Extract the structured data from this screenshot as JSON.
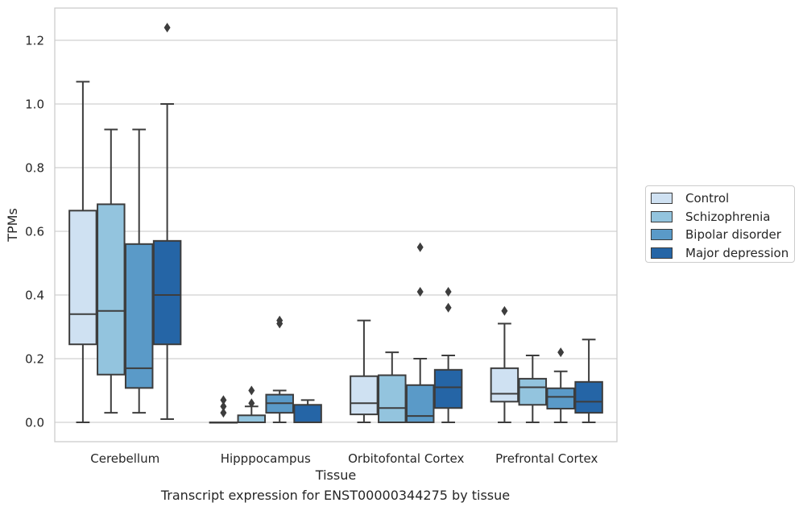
{
  "chart_data": {
    "type": "box",
    "title": "",
    "xlabel": "Tissue",
    "ylabel": "TPMs",
    "ylim": [
      -0.06,
      1.3
    ],
    "yticks": [
      "0.0",
      "0.2",
      "0.4",
      "0.6",
      "0.8",
      "1.0",
      "1.2"
    ],
    "grid": true,
    "legend_position": "right",
    "categories": [
      "Cerebellum",
      "Hipppocampus",
      "Orbitofontal Cortex",
      "Prefrontal Cortex"
    ],
    "series": [
      {
        "name": "Control",
        "color": "#cfe1f2",
        "boxes": [
          {
            "whisker_low": 0.0,
            "q1": 0.245,
            "median": 0.34,
            "q3": 0.665,
            "whisker_high": 1.07,
            "outliers": []
          },
          {
            "whisker_low": 0.0,
            "q1": 0.0,
            "median": 0.0,
            "q3": 0.0,
            "whisker_high": 0.0,
            "outliers": [
              0.03,
              0.05,
              0.07
            ]
          },
          {
            "whisker_low": 0.0,
            "q1": 0.025,
            "median": 0.06,
            "q3": 0.145,
            "whisker_high": 0.32,
            "outliers": []
          },
          {
            "whisker_low": 0.0,
            "q1": 0.065,
            "median": 0.09,
            "q3": 0.17,
            "whisker_high": 0.31,
            "outliers": [
              0.35
            ]
          }
        ]
      },
      {
        "name": "Schizophrenia",
        "color": "#93c4de",
        "boxes": [
          {
            "whisker_low": 0.03,
            "q1": 0.15,
            "median": 0.35,
            "q3": 0.685,
            "whisker_high": 0.92,
            "outliers": []
          },
          {
            "whisker_low": 0.0,
            "q1": 0.0,
            "median": 0.0,
            "q3": 0.022,
            "whisker_high": 0.05,
            "outliers": [
              0.06,
              0.1
            ]
          },
          {
            "whisker_low": 0.0,
            "q1": 0.0,
            "median": 0.045,
            "q3": 0.148,
            "whisker_high": 0.22,
            "outliers": []
          },
          {
            "whisker_low": 0.0,
            "q1": 0.055,
            "median": 0.11,
            "q3": 0.137,
            "whisker_high": 0.21,
            "outliers": []
          }
        ]
      },
      {
        "name": "Bipolar disorder",
        "color": "#5a9ac8",
        "boxes": [
          {
            "whisker_low": 0.03,
            "q1": 0.108,
            "median": 0.17,
            "q3": 0.56,
            "whisker_high": 0.92,
            "outliers": []
          },
          {
            "whisker_low": 0.0,
            "q1": 0.03,
            "median": 0.06,
            "q3": 0.087,
            "whisker_high": 0.1,
            "outliers": [
              0.31,
              0.32
            ]
          },
          {
            "whisker_low": 0.0,
            "q1": 0.0,
            "median": 0.02,
            "q3": 0.117,
            "whisker_high": 0.2,
            "outliers": [
              0.41,
              0.55
            ]
          },
          {
            "whisker_low": 0.0,
            "q1": 0.043,
            "median": 0.08,
            "q3": 0.107,
            "whisker_high": 0.16,
            "outliers": [
              0.22
            ]
          }
        ]
      },
      {
        "name": "Major depression",
        "color": "#2565a6",
        "boxes": [
          {
            "whisker_low": 0.01,
            "q1": 0.245,
            "median": 0.4,
            "q3": 0.57,
            "whisker_high": 1.0,
            "outliers": [
              1.24
            ]
          },
          {
            "whisker_low": 0.0,
            "q1": 0.0,
            "median": 0.0,
            "q3": 0.055,
            "whisker_high": 0.07,
            "outliers": []
          },
          {
            "whisker_low": 0.0,
            "q1": 0.045,
            "median": 0.11,
            "q3": 0.165,
            "whisker_high": 0.21,
            "outliers": [
              0.36,
              0.41
            ]
          },
          {
            "whisker_low": 0.0,
            "q1": 0.03,
            "median": 0.065,
            "q3": 0.127,
            "whisker_high": 0.26,
            "outliers": []
          }
        ]
      }
    ]
  },
  "caption": "Transcript expression for ENST00000344275 by tissue"
}
